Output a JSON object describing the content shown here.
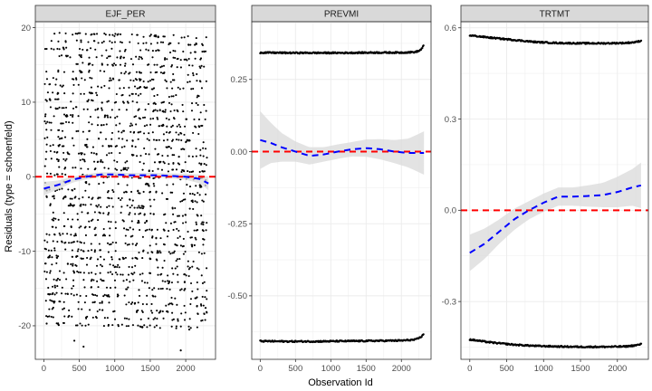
{
  "chart_data": {
    "type": "scatter",
    "xlabel": "Observation Id",
    "ylabel": "Residuals (type = schoenfeld)",
    "colors": {
      "points": "#000000",
      "smooth_line": "#0000ff",
      "smooth_band": "#d9d9d9",
      "reference_line": "#ff0000",
      "strip_fill": "#d9d9d9",
      "grid": "#ebebeb"
    },
    "grid": true,
    "panels": [
      {
        "strip": "EJF_PER",
        "xlim": [
          -120,
          2420
        ],
        "ylim": [
          -24.5,
          20.8
        ],
        "xticks": [
          0,
          500,
          1000,
          1500,
          2000
        ],
        "yticks": [
          -20,
          -10,
          0,
          10,
          20
        ],
        "ytick_labels": [
          "-20",
          "-10",
          "0",
          "10",
          "20"
        ],
        "reference_y": 0,
        "point_bands": {
          "levels": [
            19,
            18,
            17,
            16,
            15,
            14,
            13,
            12,
            11,
            10,
            9,
            8,
            7,
            6,
            5,
            4,
            3,
            2,
            1,
            0,
            -1,
            -2,
            -3,
            -4,
            -5,
            -6,
            -7,
            -8,
            -9,
            -10,
            -11,
            -12,
            -13,
            -14,
            -15,
            -16,
            -17,
            -18,
            -19,
            -20
          ],
          "x_start": 10,
          "x_end": 2300,
          "drift_per_obs": -0.00025
        },
        "extra_points": [
          {
            "x": 40,
            "y": -19.7
          },
          {
            "x": 210,
            "y": -19.9
          },
          {
            "x": 560,
            "y": -22.8
          },
          {
            "x": 430,
            "y": -22.0
          },
          {
            "x": 1930,
            "y": -23.3
          },
          {
            "x": 2050,
            "y": -20.5
          },
          {
            "x": 2280,
            "y": -17.6
          },
          {
            "x": 150,
            "y": 19.2
          },
          {
            "x": 2150,
            "y": 17.8
          }
        ],
        "smooth": {
          "x": [
            0,
            200,
            400,
            600,
            800,
            1000,
            1200,
            1400,
            1600,
            1800,
            2000,
            2200,
            2320
          ],
          "y": [
            -1.6,
            -1.1,
            -0.4,
            0.0,
            0.3,
            0.3,
            0.2,
            0.2,
            0.2,
            0.1,
            0.0,
            -0.3,
            -0.9
          ],
          "band": [
            0.9,
            0.6,
            0.4,
            0.35,
            0.3,
            0.3,
            0.3,
            0.3,
            0.3,
            0.35,
            0.4,
            0.6,
            0.9
          ]
        }
      },
      {
        "strip": "PREVMI",
        "xlim": [
          -120,
          2420
        ],
        "ylim": [
          -0.72,
          0.45
        ],
        "xticks": [
          0,
          500,
          1000,
          1500,
          2000
        ],
        "yticks": [
          -0.5,
          -0.25,
          0,
          0.25
        ],
        "ytick_labels": [
          "-0.50",
          "-0.25",
          "0.00",
          "0.25"
        ],
        "reference_y": 0,
        "point_lines": [
          {
            "y": 0.343,
            "x": [
              0,
              400,
              800,
              1200,
              1600,
              2000,
              2200,
              2260,
              2300,
              2320
            ],
            "yv": [
              0.343,
              0.342,
              0.342,
              0.342,
              0.343,
              0.343,
              0.345,
              0.35,
              0.36,
              0.372
            ]
          },
          {
            "y": -0.656,
            "x": [
              0,
              400,
              800,
              1200,
              1600,
              2000,
              2200,
              2260,
              2300,
              2320
            ],
            "yv": [
              -0.657,
              -0.658,
              -0.658,
              -0.657,
              -0.656,
              -0.655,
              -0.652,
              -0.645,
              -0.638,
              -0.63
            ]
          }
        ],
        "smooth": {
          "x": [
            0,
            150,
            300,
            500,
            700,
            900,
            1100,
            1300,
            1500,
            1700,
            1900,
            2100,
            2320
          ],
          "y": [
            0.04,
            0.03,
            0.015,
            0.0,
            -0.015,
            -0.01,
            0.0,
            0.008,
            0.012,
            0.008,
            0.0,
            -0.005,
            -0.005
          ],
          "band": [
            0.1,
            0.07,
            0.05,
            0.035,
            0.03,
            0.025,
            0.025,
            0.025,
            0.03,
            0.035,
            0.04,
            0.05,
            0.075
          ]
        }
      },
      {
        "strip": "TRTMT",
        "xlim": [
          -120,
          2420
        ],
        "ylim": [
          -0.49,
          0.62
        ],
        "xticks": [
          0,
          500,
          1000,
          1500,
          2000
        ],
        "yticks": [
          -0.3,
          0,
          0.3,
          0.6
        ],
        "ytick_labels": [
          "-0.3",
          "0.0",
          "0.3",
          "0.6"
        ],
        "reference_y": 0,
        "point_lines": [
          {
            "y": 0.57,
            "x": [
              0,
              300,
              600,
              900,
              1200,
              1500,
              1800,
              2100,
              2250,
              2330
            ],
            "yv": [
              0.575,
              0.567,
              0.56,
              0.553,
              0.55,
              0.549,
              0.549,
              0.55,
              0.553,
              0.558
            ]
          },
          {
            "y": -0.43,
            "x": [
              0,
              300,
              600,
              900,
              1200,
              1500,
              1800,
              2100,
              2250,
              2330
            ],
            "yv": [
              -0.425,
              -0.435,
              -0.442,
              -0.446,
              -0.448,
              -0.449,
              -0.449,
              -0.448,
              -0.444,
              -0.44
            ]
          }
        ],
        "smooth": {
          "x": [
            0,
            200,
            400,
            600,
            800,
            1000,
            1200,
            1400,
            1600,
            1800,
            2000,
            2200,
            2320
          ],
          "y": [
            -0.14,
            -0.11,
            -0.07,
            -0.03,
            0.0,
            0.025,
            0.045,
            0.045,
            0.047,
            0.05,
            0.06,
            0.075,
            0.082
          ],
          "band": [
            0.06,
            0.05,
            0.04,
            0.035,
            0.03,
            0.03,
            0.03,
            0.03,
            0.035,
            0.04,
            0.05,
            0.06,
            0.075
          ]
        }
      }
    ]
  }
}
